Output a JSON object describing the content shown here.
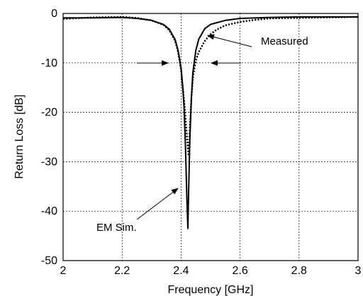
{
  "chart_data": {
    "type": "line",
    "title": "",
    "xlabel": "Frequency [GHz]",
    "ylabel": "Return Loss [dB]",
    "xlim": [
      2,
      3
    ],
    "ylim": [
      -50,
      0
    ],
    "xticks": [
      2,
      2.2,
      2.4,
      2.6,
      2.8,
      3
    ],
    "yticks": [
      0,
      -10,
      -20,
      -30,
      -40,
      -50
    ],
    "xtick_labels": [
      "2",
      "2.2",
      "2.4",
      "2.6",
      "2.8",
      "3"
    ],
    "ytick_labels": [
      "0",
      "-10",
      "-20",
      "-30",
      "-40",
      "-50"
    ],
    "grid": true,
    "legend": "none",
    "series": [
      {
        "label": "EM Sim.",
        "style": "solid",
        "x": [
          2.0,
          2.1,
          2.2,
          2.25,
          2.3,
          2.34,
          2.36,
          2.38,
          2.39,
          2.4,
          2.405,
          2.41,
          2.415,
          2.42,
          2.423,
          2.425,
          2.428,
          2.43,
          2.435,
          2.44,
          2.45,
          2.46,
          2.48,
          2.5,
          2.55,
          2.6,
          2.7,
          2.8,
          2.9,
          3.0
        ],
        "y": [
          -0.9,
          -0.9,
          -0.8,
          -1.0,
          -1.4,
          -2.2,
          -3.2,
          -5.3,
          -7.5,
          -11.0,
          -14.5,
          -19.0,
          -27.0,
          -38.0,
          -43.5,
          -38.0,
          -30.0,
          -25.0,
          -17.0,
          -12.0,
          -7.5,
          -5.2,
          -3.1,
          -2.2,
          -1.4,
          -1.0,
          -0.8,
          -0.7,
          -0.7,
          -0.7
        ]
      },
      {
        "label": "Measured",
        "style": "dotted",
        "x": [
          2.0,
          2.1,
          2.2,
          2.25,
          2.3,
          2.34,
          2.36,
          2.38,
          2.39,
          2.4,
          2.41,
          2.42,
          2.425,
          2.428,
          2.43,
          2.435,
          2.44,
          2.45,
          2.46,
          2.48,
          2.5,
          2.52,
          2.55,
          2.6,
          2.65,
          2.7,
          2.8,
          2.9,
          3.0
        ],
        "y": [
          -1.1,
          -0.8,
          -0.7,
          -0.9,
          -1.4,
          -2.3,
          -3.4,
          -5.6,
          -7.8,
          -11.5,
          -17.5,
          -25.0,
          -28.5,
          -26.0,
          -23.0,
          -17.0,
          -13.0,
          -9.5,
          -7.8,
          -5.6,
          -4.2,
          -3.3,
          -2.4,
          -1.7,
          -1.3,
          -1.0,
          -0.9,
          -0.8,
          -0.7
        ]
      }
    ],
    "annotations": [
      {
        "name": "measured",
        "text": "Measured",
        "target_x": 2.49,
        "target_y": -4.5
      },
      {
        "name": "em-sim",
        "text": "EM Sim.",
        "target_x": 2.415,
        "target_y": -35
      }
    ]
  }
}
